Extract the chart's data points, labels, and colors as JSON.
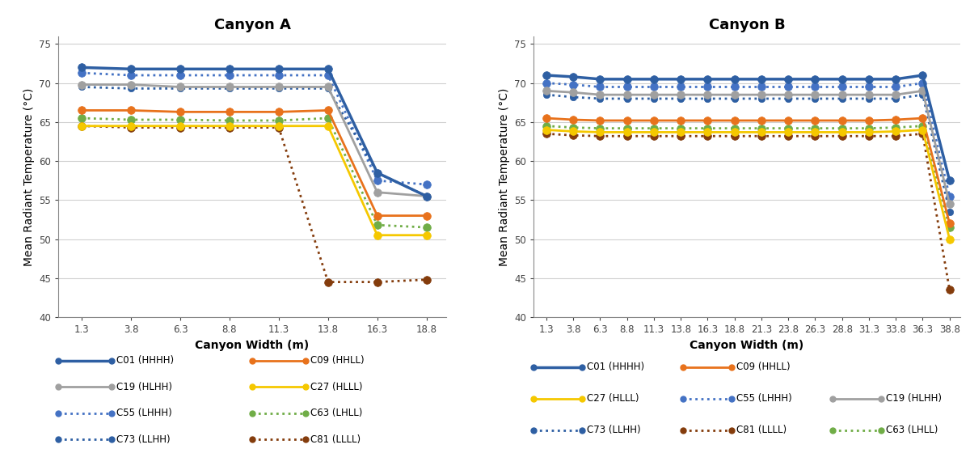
{
  "canyon_A": {
    "title": "Canyon A",
    "xlabel": "Canyon Width (m)",
    "ylabel": "Mean Radiant Temperature (°C)",
    "ylim": [
      40,
      76
    ],
    "yticks": [
      40,
      45,
      50,
      55,
      60,
      65,
      70,
      75
    ],
    "xticks": [
      1.3,
      3.8,
      6.3,
      8.8,
      11.3,
      13.8,
      16.3,
      18.8
    ],
    "series": [
      {
        "name": "C01 (HHHH)",
        "x": [
          1.3,
          3.8,
          6.3,
          8.8,
          11.3,
          13.8,
          16.3,
          18.8
        ],
        "y": [
          72.0,
          71.8,
          71.8,
          71.8,
          71.8,
          71.8,
          58.5,
          55.5
        ],
        "color": "#2E5FA3",
        "linestyle": "solid",
        "linewidth": 2.5,
        "markersize": 7,
        "zorder": 5
      },
      {
        "name": "C09 (HHLL)",
        "x": [
          1.3,
          3.8,
          6.3,
          8.8,
          11.3,
          13.8,
          16.3,
          18.8
        ],
        "y": [
          66.5,
          66.5,
          66.3,
          66.3,
          66.3,
          66.5,
          53.0,
          53.0
        ],
        "color": "#E8721C",
        "linestyle": "solid",
        "linewidth": 2.0,
        "markersize": 7,
        "zorder": 4
      },
      {
        "name": "C19 (HLHH)",
        "x": [
          1.3,
          3.8,
          6.3,
          8.8,
          11.3,
          13.8,
          16.3,
          18.8
        ],
        "y": [
          69.8,
          69.8,
          69.5,
          69.5,
          69.5,
          69.5,
          56.0,
          55.5
        ],
        "color": "#A0A0A0",
        "linestyle": "solid",
        "linewidth": 2.0,
        "markersize": 7,
        "zorder": 4
      },
      {
        "name": "C27 (HLLL)",
        "x": [
          1.3,
          3.8,
          6.3,
          8.8,
          11.3,
          13.8,
          16.3,
          18.8
        ],
        "y": [
          64.5,
          64.5,
          64.5,
          64.5,
          64.5,
          64.5,
          50.5,
          50.5
        ],
        "color": "#F5C800",
        "linestyle": "solid",
        "linewidth": 2.0,
        "markersize": 7,
        "zorder": 4
      },
      {
        "name": "C55 (LHHH)",
        "x": [
          1.3,
          3.8,
          6.3,
          8.8,
          11.3,
          13.8,
          16.3,
          18.8
        ],
        "y": [
          71.3,
          71.0,
          71.0,
          71.0,
          71.0,
          71.0,
          57.5,
          57.0
        ],
        "color": "#4472C4",
        "linestyle": "dotted",
        "linewidth": 2.0,
        "markersize": 7,
        "zorder": 3
      },
      {
        "name": "C63 (LHLL)",
        "x": [
          1.3,
          3.8,
          6.3,
          8.8,
          11.3,
          13.8,
          16.3,
          18.8
        ],
        "y": [
          65.5,
          65.3,
          65.3,
          65.2,
          65.2,
          65.5,
          51.8,
          51.5
        ],
        "color": "#70AD47",
        "linestyle": "dotted",
        "linewidth": 2.0,
        "markersize": 7,
        "zorder": 3
      },
      {
        "name": "C73 (LLHH)",
        "x": [
          1.3,
          3.8,
          6.3,
          8.8,
          11.3,
          13.8,
          16.3,
          18.8
        ],
        "y": [
          69.5,
          69.3,
          69.3,
          69.3,
          69.3,
          69.3,
          58.5,
          55.5
        ],
        "color": "#2E5FA3",
        "linestyle": "dotted",
        "linewidth": 2.0,
        "markersize": 6,
        "zorder": 3
      },
      {
        "name": "C81 (LLLL)",
        "x": [
          1.3,
          3.8,
          6.3,
          8.8,
          11.3,
          13.8,
          16.3,
          18.8
        ],
        "y": [
          64.5,
          64.3,
          64.3,
          64.3,
          64.3,
          44.5,
          44.5,
          44.8
        ],
        "color": "#843C0C",
        "linestyle": "dotted",
        "linewidth": 2.0,
        "markersize": 7,
        "zorder": 3
      }
    ]
  },
  "canyon_B": {
    "title": "Canyon B",
    "xlabel": "Canyon Width (m)",
    "ylabel": "Mean Radiant Temperature (°C)",
    "ylim": [
      40,
      76
    ],
    "yticks": [
      40,
      45,
      50,
      55,
      60,
      65,
      70,
      75
    ],
    "xticks": [
      1.3,
      3.8,
      6.3,
      8.8,
      11.3,
      13.8,
      16.3,
      18.8,
      21.3,
      23.8,
      26.3,
      28.8,
      31.3,
      33.8,
      36.3,
      38.8
    ],
    "series": [
      {
        "name": "C01 (HHHH)",
        "x": [
          1.3,
          3.8,
          6.3,
          8.8,
          11.3,
          13.8,
          16.3,
          18.8,
          21.3,
          23.8,
          26.3,
          28.8,
          31.3,
          33.8,
          36.3,
          38.8
        ],
        "y": [
          71.0,
          70.8,
          70.5,
          70.5,
          70.5,
          70.5,
          70.5,
          70.5,
          70.5,
          70.5,
          70.5,
          70.5,
          70.5,
          70.5,
          71.0,
          57.5
        ],
        "color": "#2E5FA3",
        "linestyle": "solid",
        "linewidth": 2.5,
        "markersize": 7,
        "zorder": 5
      },
      {
        "name": "C09 (HHLL)",
        "x": [
          1.3,
          3.8,
          6.3,
          8.8,
          11.3,
          13.8,
          16.3,
          18.8,
          21.3,
          23.8,
          26.3,
          28.8,
          31.3,
          33.8,
          36.3,
          38.8
        ],
        "y": [
          65.5,
          65.3,
          65.2,
          65.2,
          65.2,
          65.2,
          65.2,
          65.2,
          65.2,
          65.2,
          65.2,
          65.2,
          65.2,
          65.3,
          65.5,
          52.0
        ],
        "color": "#E8721C",
        "linestyle": "solid",
        "linewidth": 2.0,
        "markersize": 7,
        "zorder": 4
      },
      {
        "name": "C19 (HLHH)",
        "x": [
          1.3,
          3.8,
          6.3,
          8.8,
          11.3,
          13.8,
          16.3,
          18.8,
          21.3,
          23.8,
          26.3,
          28.8,
          31.3,
          33.8,
          36.3,
          38.8
        ],
        "y": [
          69.0,
          68.8,
          68.5,
          68.5,
          68.5,
          68.5,
          68.5,
          68.5,
          68.5,
          68.5,
          68.5,
          68.5,
          68.5,
          68.5,
          69.0,
          54.5
        ],
        "color": "#A0A0A0",
        "linestyle": "solid",
        "linewidth": 2.0,
        "markersize": 7,
        "zorder": 4
      },
      {
        "name": "C27 (HLLL)",
        "x": [
          1.3,
          3.8,
          6.3,
          8.8,
          11.3,
          13.8,
          16.3,
          18.8,
          21.3,
          23.8,
          26.3,
          28.8,
          31.3,
          33.8,
          36.3,
          38.8
        ],
        "y": [
          64.0,
          63.8,
          63.7,
          63.7,
          63.7,
          63.7,
          63.7,
          63.7,
          63.7,
          63.7,
          63.7,
          63.7,
          63.7,
          63.8,
          64.0,
          50.0
        ],
        "color": "#F5C800",
        "linestyle": "solid",
        "linewidth": 2.0,
        "markersize": 7,
        "zorder": 4
      },
      {
        "name": "C55 (LHHH)",
        "x": [
          1.3,
          3.8,
          6.3,
          8.8,
          11.3,
          13.8,
          16.3,
          18.8,
          21.3,
          23.8,
          26.3,
          28.8,
          31.3,
          33.8,
          36.3,
          38.8
        ],
        "y": [
          70.0,
          69.8,
          69.5,
          69.5,
          69.5,
          69.5,
          69.5,
          69.5,
          69.5,
          69.5,
          69.5,
          69.5,
          69.5,
          69.5,
          70.0,
          55.5
        ],
        "color": "#4472C4",
        "linestyle": "dotted",
        "linewidth": 2.0,
        "markersize": 7,
        "zorder": 3
      },
      {
        "name": "C63 (LHLL)",
        "x": [
          1.3,
          3.8,
          6.3,
          8.8,
          11.3,
          13.8,
          16.3,
          18.8,
          21.3,
          23.8,
          26.3,
          28.8,
          31.3,
          33.8,
          36.3,
          38.8
        ],
        "y": [
          64.5,
          64.3,
          64.2,
          64.2,
          64.2,
          64.2,
          64.2,
          64.2,
          64.2,
          64.2,
          64.2,
          64.2,
          64.2,
          64.3,
          64.5,
          51.5
        ],
        "color": "#70AD47",
        "linestyle": "dotted",
        "linewidth": 2.0,
        "markersize": 7,
        "zorder": 3
      },
      {
        "name": "C73 (LLHH)",
        "x": [
          1.3,
          3.8,
          6.3,
          8.8,
          11.3,
          13.8,
          16.3,
          18.8,
          21.3,
          23.8,
          26.3,
          28.8,
          31.3,
          33.8,
          36.3,
          38.8
        ],
        "y": [
          68.5,
          68.2,
          68.0,
          68.0,
          68.0,
          68.0,
          68.0,
          68.0,
          68.0,
          68.0,
          68.0,
          68.0,
          68.0,
          68.0,
          68.5,
          53.5
        ],
        "color": "#2E5FA3",
        "linestyle": "dotted",
        "linewidth": 2.0,
        "markersize": 6,
        "zorder": 3
      },
      {
        "name": "C81 (LLLL)",
        "x": [
          1.3,
          3.8,
          6.3,
          8.8,
          11.3,
          13.8,
          16.3,
          18.8,
          21.3,
          23.8,
          26.3,
          28.8,
          31.3,
          33.8,
          36.3,
          38.8
        ],
        "y": [
          63.5,
          63.3,
          63.2,
          63.2,
          63.2,
          63.2,
          63.2,
          63.2,
          63.2,
          63.2,
          63.2,
          63.2,
          63.2,
          63.2,
          63.5,
          43.5
        ],
        "color": "#843C0C",
        "linestyle": "dotted",
        "linewidth": 2.0,
        "markersize": 7,
        "zorder": 3
      }
    ]
  },
  "legend_A": {
    "col1": [
      {
        "label": "C01 (HHHH)",
        "color": "#2E5FA3",
        "linestyle": "solid",
        "linewidth": 2.5
      },
      {
        "label": "C19 (HLHH)",
        "color": "#A0A0A0",
        "linestyle": "solid",
        "linewidth": 2.0
      },
      {
        "label": "C55 (LHHH)",
        "color": "#4472C4",
        "linestyle": "dotted",
        "linewidth": 2.0
      },
      {
        "label": "C73 (LLHH)",
        "color": "#2E5FA3",
        "linestyle": "dotted",
        "linewidth": 2.0
      }
    ],
    "col2": [
      {
        "label": "C09 (HHLL)",
        "color": "#E8721C",
        "linestyle": "solid",
        "linewidth": 2.0
      },
      {
        "label": "C27 (HLLL)",
        "color": "#F5C800",
        "linestyle": "solid",
        "linewidth": 2.0
      },
      {
        "label": "C63 (LHLL)",
        "color": "#70AD47",
        "linestyle": "dotted",
        "linewidth": 2.0
      },
      {
        "label": "C81 (LLLL)",
        "color": "#843C0C",
        "linestyle": "dotted",
        "linewidth": 2.0
      }
    ]
  },
  "legend_B": {
    "col1": [
      {
        "label": "C01 (HHHH)",
        "color": "#2E5FA3",
        "linestyle": "solid",
        "linewidth": 2.5
      },
      {
        "label": "C27 (HLLL)",
        "color": "#F5C800",
        "linestyle": "solid",
        "linewidth": 2.0
      },
      {
        "label": "C73 (LLHH)",
        "color": "#2E5FA3",
        "linestyle": "dotted",
        "linewidth": 2.0
      }
    ],
    "col2": [
      {
        "label": "C09 (HHLL)",
        "color": "#E8721C",
        "linestyle": "solid",
        "linewidth": 2.0
      },
      {
        "label": "C55 (LHHH)",
        "color": "#4472C4",
        "linestyle": "dotted",
        "linewidth": 2.0
      },
      {
        "label": "C81 (LLLL)",
        "color": "#843C0C",
        "linestyle": "dotted",
        "linewidth": 2.0
      }
    ],
    "col3": [
      {
        "label": "C19 (HLHH)",
        "color": "#A0A0A0",
        "linestyle": "solid",
        "linewidth": 2.0
      },
      {
        "label": "C63 (LHLL)",
        "color": "#70AD47",
        "linestyle": "dotted",
        "linewidth": 2.0
      }
    ]
  },
  "bg_color": "#FFFFFF",
  "grid_color": "#D0D0D0",
  "title_fontsize": 13,
  "label_fontsize": 10,
  "tick_fontsize": 8.5,
  "legend_fontsize": 8.5
}
